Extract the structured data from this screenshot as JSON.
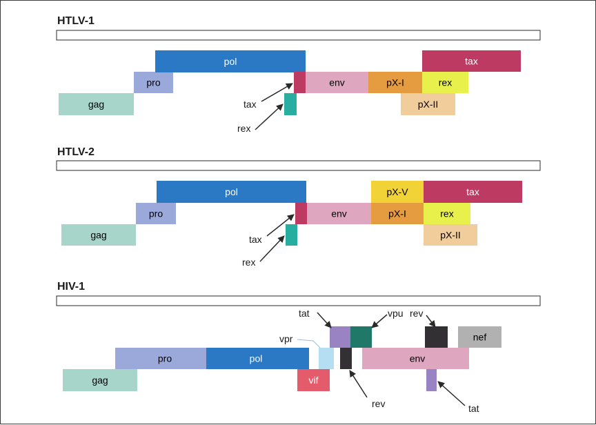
{
  "colors": {
    "gag": "#a8d5c9",
    "pro": "#9aa9d9",
    "pol": "#2b78c4",
    "env": "#dfa6bf",
    "tax": "#bd3a62",
    "rex": "#e8f04c",
    "pxI": "#e59b3f",
    "pxII": "#f2cd9c",
    "pxV": "#f1d338",
    "teal": "#27aea0",
    "vif": "#e45c6c",
    "vpr": "#b6def2",
    "tat": "#9a83c2",
    "vpu": "#207868",
    "rev": "#333033",
    "nef": "#b1b1b1"
  },
  "diagram": {
    "sections": [
      {
        "title": "HTLV-1",
        "genes": [
          {
            "label": "gag",
            "color": "gag"
          },
          {
            "label": "pro",
            "color": "pro"
          },
          {
            "label": "pol",
            "color": "pol"
          },
          {
            "label": "",
            "color": "tax"
          },
          {
            "label": "",
            "color": "teal"
          },
          {
            "label": "env",
            "color": "env"
          },
          {
            "label": "pX-I",
            "color": "pxI"
          },
          {
            "label": "rex",
            "color": "rex"
          },
          {
            "label": "tax",
            "color": "tax"
          },
          {
            "label": "pX-II",
            "color": "pxII"
          }
        ],
        "annotations": [
          "tax",
          "rex"
        ]
      },
      {
        "title": "HTLV-2",
        "genes": [
          {
            "label": "gag",
            "color": "gag"
          },
          {
            "label": "pro",
            "color": "pro"
          },
          {
            "label": "pol",
            "color": "pol"
          },
          {
            "label": "",
            "color": "tax"
          },
          {
            "label": "",
            "color": "teal"
          },
          {
            "label": "env",
            "color": "env"
          },
          {
            "label": "pX-V",
            "color": "pxV"
          },
          {
            "label": "tax",
            "color": "tax"
          },
          {
            "label": "pX-I",
            "color": "pxI"
          },
          {
            "label": "rex",
            "color": "rex"
          },
          {
            "label": "pX-II",
            "color": "pxII"
          }
        ],
        "annotations": [
          "tax",
          "rex"
        ]
      },
      {
        "title": "HIV-1",
        "genes": [
          {
            "label": "gag",
            "color": "gag"
          },
          {
            "label": "pro",
            "color": "pro"
          },
          {
            "label": "pol",
            "color": "pol"
          },
          {
            "label": "vif",
            "color": "vif"
          },
          {
            "label": "",
            "color": "vpr"
          },
          {
            "label": "",
            "color": "tat"
          },
          {
            "label": "",
            "color": "vpu"
          },
          {
            "label": "",
            "color": "rev"
          },
          {
            "label": "env",
            "color": "env"
          },
          {
            "label": "",
            "color": "rev"
          },
          {
            "label": "nef",
            "color": "nef"
          },
          {
            "label": "",
            "color": "tat"
          }
        ],
        "annotations": [
          "tat",
          "vpu",
          "rev",
          "vpr",
          "rev",
          "tat"
        ]
      }
    ]
  }
}
